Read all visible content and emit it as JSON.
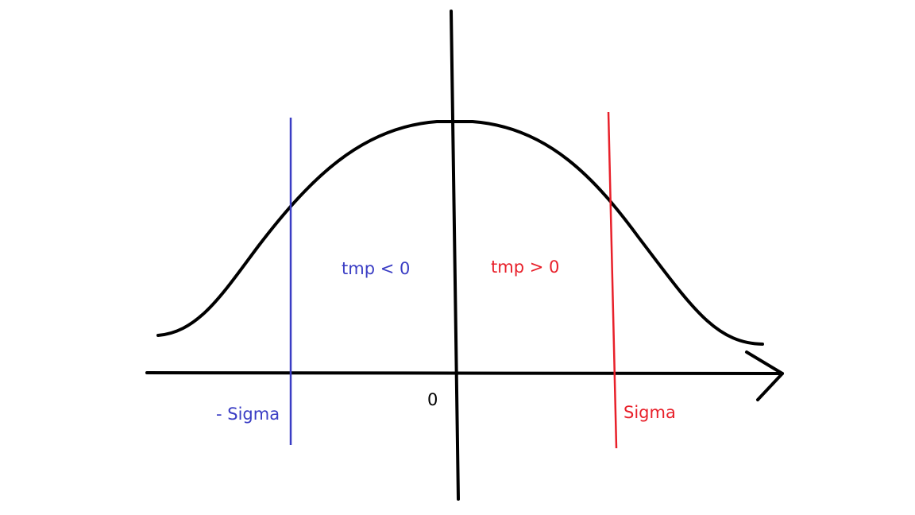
{
  "labels": {
    "neg_sigma": "- Sigma",
    "sigma": "Sigma",
    "zero": "0",
    "tmp_neg": "tmp < 0",
    "tmp_pos": "tmp > 0"
  },
  "colors": {
    "ink": "#000000",
    "negative": "#3a3dc4",
    "positive": "#e8202a",
    "background": "#ffffff"
  }
}
